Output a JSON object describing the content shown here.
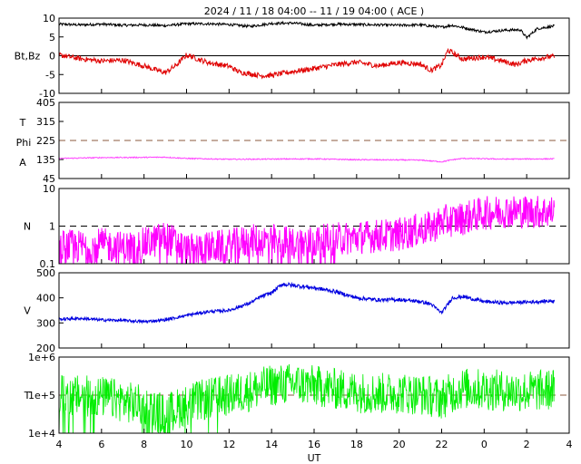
{
  "title": "2024 / 11 / 18   04:00 -- 11 / 19   04:00 ( ACE )",
  "x_axis": {
    "label": "UT",
    "tick_labels": [
      "4",
      "6",
      "8",
      "10",
      "12",
      "14",
      "16",
      "18",
      "20",
      "22",
      "0",
      "2",
      "4"
    ]
  },
  "colors": {
    "bt": "#000000",
    "bz": "#e00000",
    "phi": "#ff44ff",
    "density": "#ff00ff",
    "speed": "#0000e0",
    "temperature": "#00ee00",
    "reference": "#8b5a3c"
  },
  "chart_data": [
    {
      "type": "line",
      "ylabel": "Bt,Bz",
      "ylim": [
        -10,
        10
      ],
      "y_tick_labels": [
        "10",
        "5",
        "0",
        "-5",
        "-10"
      ],
      "zero_line": 0,
      "series": [
        {
          "color_key": "bt",
          "style": "bt",
          "x": [
            4,
            5,
            6,
            7,
            8,
            9,
            10,
            11,
            12,
            13,
            14,
            15,
            16,
            17,
            18,
            19,
            20,
            21,
            22,
            22.5,
            23,
            24,
            25,
            25.7,
            26,
            26.5,
            27.3
          ],
          "y": [
            8.4,
            8.2,
            8.4,
            8.1,
            8.2,
            8,
            8.5,
            8.5,
            8.3,
            7.8,
            8.6,
            8.7,
            8.1,
            8.4,
            8.3,
            8.2,
            8.1,
            8.2,
            7.6,
            8.1,
            7.5,
            6.3,
            6.8,
            6.9,
            4.8,
            7.2,
            7.9
          ]
        },
        {
          "color_key": "bz",
          "style": "bz",
          "x": [
            4,
            5,
            6,
            7,
            8,
            8.5,
            9,
            9.5,
            10,
            11,
            12,
            12.5,
            13,
            13.5,
            14,
            15,
            16,
            17,
            18,
            19,
            20,
            21,
            21.5,
            22,
            22.3,
            23,
            24,
            25,
            25.5,
            26,
            27,
            27.3
          ],
          "y": [
            0.2,
            -0.8,
            -1.4,
            -1.2,
            -2.7,
            -3.7,
            -4.5,
            -2.6,
            0.2,
            -1.8,
            -2.8,
            -4.4,
            -4.8,
            -5.3,
            -5.2,
            -4.2,
            -3.4,
            -2.4,
            -1.7,
            -2.7,
            -1.8,
            -2.2,
            -3.9,
            -2.5,
            1.5,
            -0.9,
            -0.3,
            -1.6,
            -2.4,
            -1.2,
            -0.3,
            -0.2
          ]
        }
      ]
    },
    {
      "type": "line",
      "ylabel_lines": [
        "T",
        "Phi",
        "A"
      ],
      "ylim": [
        45,
        405
      ],
      "y_tick_labels": [
        "405",
        "315",
        "225",
        "135",
        "45"
      ],
      "reference_line": 225,
      "series": [
        {
          "color_key": "phi",
          "style": "phi",
          "x": [
            4,
            6,
            8,
            9,
            10,
            12,
            14,
            16,
            18,
            20,
            21,
            22,
            22.5,
            23,
            25,
            27.3
          ],
          "y": [
            140,
            144,
            145,
            146,
            140,
            136,
            137,
            138,
            134,
            133,
            132,
            124,
            134,
            140,
            137,
            138
          ]
        }
      ]
    },
    {
      "type": "line",
      "ylabel": "N",
      "scale": "log",
      "ylim": [
        0.1,
        10
      ],
      "y_tick_labels": [
        "10",
        "1",
        "0.1"
      ],
      "reference_line": 1,
      "series": [
        {
          "color_key": "density",
          "style": "density",
          "x": [
            4,
            5,
            6,
            7,
            8,
            8.5,
            9,
            9.5,
            10,
            11,
            12,
            13,
            14,
            15,
            16,
            17,
            18,
            19,
            20,
            21,
            21.5,
            22,
            23,
            24,
            25,
            26,
            27.3
          ],
          "y": [
            0.3,
            0.28,
            0.32,
            0.26,
            0.33,
            0.4,
            0.5,
            0.35,
            0.22,
            0.26,
            0.3,
            0.4,
            0.42,
            0.34,
            0.38,
            0.45,
            0.5,
            0.55,
            0.6,
            0.8,
            0.9,
            1.3,
            1.6,
            2.2,
            2.5,
            2.4,
            2.4
          ]
        }
      ]
    },
    {
      "type": "line",
      "ylabel": "V",
      "ylim": [
        200,
        500
      ],
      "y_tick_labels": [
        "500",
        "400",
        "300",
        "200"
      ],
      "series": [
        {
          "color_key": "speed",
          "style": "speed",
          "x": [
            4,
            5,
            6,
            7,
            8,
            9,
            10,
            11,
            12,
            13,
            13.5,
            14,
            14.5,
            15,
            16,
            17,
            18,
            19,
            20,
            21,
            21.5,
            22,
            22.5,
            23,
            24,
            25,
            26,
            27.3
          ],
          "y": [
            315,
            318,
            312,
            310,
            305,
            312,
            330,
            345,
            350,
            380,
            405,
            420,
            455,
            450,
            440,
            425,
            400,
            392,
            393,
            385,
            375,
            340,
            400,
            405,
            385,
            380,
            383,
            388
          ]
        }
      ]
    },
    {
      "type": "line",
      "ylabel": "T",
      "scale": "log",
      "ylim": [
        10000,
        1000000
      ],
      "y_tick_labels": [
        "1e+6",
        "1e+5",
        "1e+4"
      ],
      "reference_line": 100000,
      "series": [
        {
          "color_key": "temperature",
          "style": "temperature",
          "x": [
            4,
            5,
            6,
            7,
            8,
            9,
            10,
            11,
            12,
            13,
            14,
            15,
            16,
            17,
            18,
            19,
            20,
            21,
            22,
            23,
            24,
            25,
            26,
            27.3
          ],
          "y": [
            100000,
            95000,
            90000,
            70000,
            50000,
            30000,
            55000,
            80000,
            100000,
            130000,
            180000,
            200000,
            175000,
            145000,
            120000,
            110000,
            115000,
            105000,
            80000,
            150000,
            140000,
            130000,
            125000,
            140000
          ]
        }
      ]
    }
  ]
}
